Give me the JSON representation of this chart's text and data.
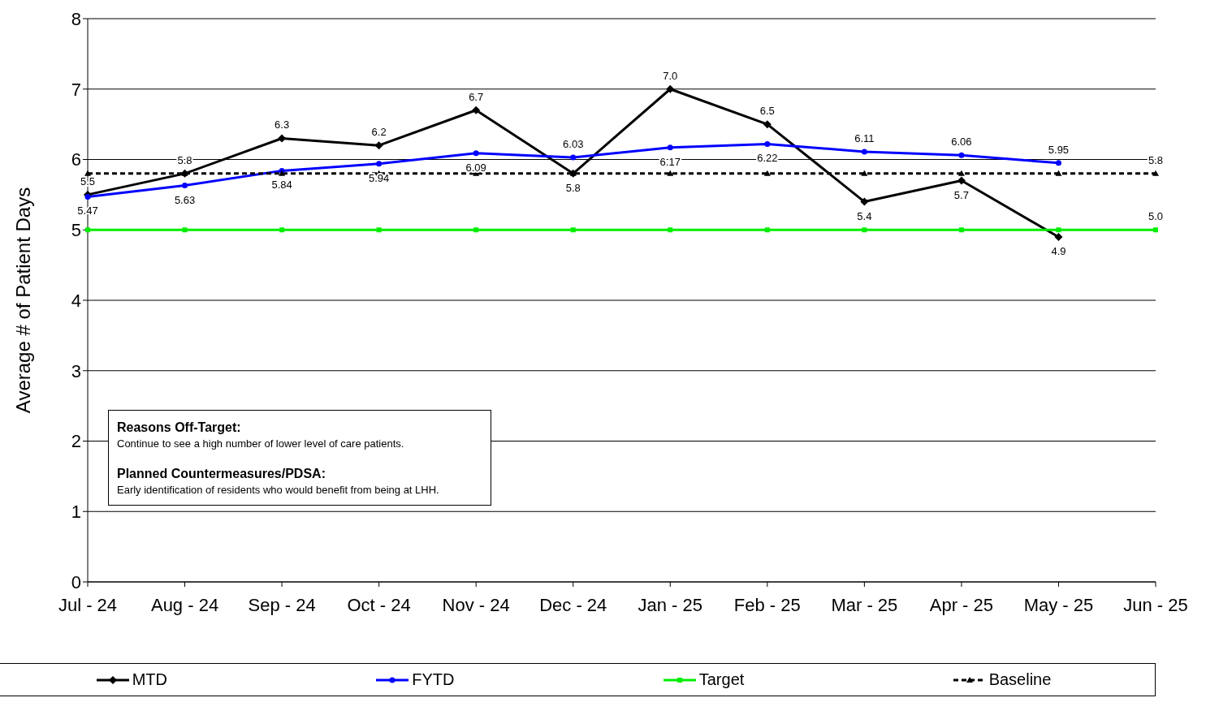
{
  "chart_data": {
    "type": "line",
    "ylabel": "Average # of Patient Days",
    "categories": [
      "Jul - 24",
      "Aug - 24",
      "Sep - 24",
      "Oct - 24",
      "Nov - 24",
      "Dec - 24",
      "Jan - 25",
      "Feb - 25",
      "Mar - 25",
      "Apr - 25",
      "May - 25",
      "Jun - 25"
    ],
    "series": [
      {
        "name": "MTD",
        "color": "#000000",
        "marker": "diamond",
        "line_style": "solid",
        "values": [
          5.5,
          5.8,
          6.3,
          6.2,
          6.7,
          5.8,
          7.0,
          6.5,
          5.4,
          5.7,
          4.9,
          null
        ],
        "value_labels": [
          "5.5",
          "5.8",
          "6.3",
          "6.2",
          "6.7",
          "5.8",
          "7.0",
          "6.5",
          "5.4",
          "5.7",
          "4.9",
          null
        ]
      },
      {
        "name": "FYTD",
        "color": "#0000ff",
        "marker": "circle",
        "line_style": "solid",
        "values": [
          5.47,
          5.63,
          5.84,
          5.94,
          6.09,
          6.03,
          6.17,
          6.22,
          6.11,
          6.06,
          5.95,
          null
        ],
        "value_labels": [
          "5.47",
          "5.63",
          "5.84",
          "5.94",
          "6.09",
          "6.03",
          "6.17",
          "6.22",
          "6.11",
          "6.06",
          "5.95",
          null
        ]
      },
      {
        "name": "Target",
        "color": "#00ee00",
        "marker": "square",
        "line_style": "solid",
        "values": [
          5,
          5,
          5,
          5,
          5,
          5,
          5,
          5,
          5,
          5,
          5,
          5
        ],
        "value_labels": [
          null,
          null,
          null,
          null,
          null,
          null,
          null,
          null,
          null,
          null,
          null,
          "5.0"
        ]
      },
      {
        "name": "Baseline",
        "color": "#000000",
        "marker": "triangle",
        "line_style": "dashed",
        "values": [
          5.8,
          5.8,
          5.8,
          5.8,
          5.8,
          5.8,
          5.8,
          5.8,
          5.8,
          5.8,
          5.8,
          5.8
        ],
        "value_labels": [
          null,
          null,
          null,
          null,
          null,
          null,
          null,
          null,
          null,
          null,
          null,
          "5.8"
        ]
      }
    ],
    "ylim": [
      0,
      8
    ],
    "yticks": [
      0,
      1,
      2,
      3,
      4,
      5,
      6,
      7,
      8
    ],
    "grid": "y",
    "legend": "bottom",
    "annotations": [
      "Reasons Off-Target:",
      "Continue to see a high number of lower level of care patients.",
      "Planned Countermeasures/PDSA:",
      "Early identification of residents who would benefit from being at LHH."
    ]
  }
}
